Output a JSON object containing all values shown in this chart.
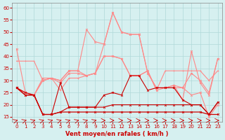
{
  "x": [
    0,
    1,
    2,
    3,
    4,
    5,
    6,
    7,
    8,
    9,
    10,
    11,
    12,
    13,
    14,
    15,
    16,
    17,
    18,
    19,
    20,
    21,
    22,
    23
  ],
  "line1": [
    43,
    25,
    24,
    31,
    31,
    29,
    33,
    33,
    32,
    33,
    40,
    40,
    39,
    32,
    32,
    34,
    26,
    27,
    27,
    27,
    33,
    30,
    25,
    39
  ],
  "line2": [
    38,
    38,
    38,
    30,
    31,
    26,
    31,
    31,
    32,
    33,
    40,
    40,
    39,
    32,
    32,
    34,
    26,
    34,
    34,
    34,
    34,
    34,
    30,
    34
  ],
  "line3": [
    27,
    25,
    24,
    16,
    16,
    29,
    19,
    19,
    19,
    19,
    24,
    25,
    24,
    32,
    32,
    26,
    27,
    27,
    27,
    22,
    20,
    20,
    16,
    21
  ],
  "line4": [
    27,
    24,
    24,
    16,
    16,
    17,
    17,
    17,
    17,
    17,
    17,
    17,
    17,
    17,
    17,
    17,
    17,
    17,
    17,
    17,
    17,
    17,
    16,
    16
  ],
  "line5": [
    27,
    24,
    24,
    16,
    16,
    17,
    19,
    19,
    19,
    19,
    19,
    20,
    20,
    20,
    20,
    20,
    20,
    20,
    20,
    20,
    20,
    20,
    16,
    21
  ],
  "line6_rafales": [
    27,
    25,
    24,
    30,
    31,
    30,
    34,
    34,
    51,
    46,
    45,
    58,
    50,
    49,
    49,
    33,
    27,
    27,
    28,
    27,
    24,
    25,
    15,
    20
  ],
  "line7_rafales_light": [
    27,
    25,
    24,
    30,
    31,
    30,
    34,
    34,
    32,
    33,
    45,
    58,
    50,
    49,
    49,
    33,
    27,
    27,
    28,
    22,
    42,
    29,
    24,
    39
  ],
  "arrows": [
    0,
    1,
    2,
    3,
    4,
    5,
    6,
    7,
    8,
    9,
    10,
    11,
    12,
    13,
    14,
    15,
    16,
    17,
    18,
    19,
    20,
    21,
    22,
    23
  ],
  "arrow_angles": [
    45,
    45,
    45,
    45,
    45,
    45,
    45,
    45,
    45,
    45,
    0,
    0,
    0,
    0,
    0,
    0,
    0,
    0,
    0,
    0,
    0,
    0,
    0,
    0
  ],
  "bg_color": "#d6f0f0",
  "grid_color": "#b0d8d8",
  "line_color_dark": "#cc0000",
  "line_color_light": "#ff8888",
  "xlabel": "Vent moyen/en rafales ( km/h )",
  "ylabel": "",
  "ylim": [
    13,
    62
  ],
  "yticks": [
    15,
    20,
    25,
    30,
    35,
    40,
    45,
    50,
    55,
    60
  ],
  "xticks": [
    0,
    1,
    2,
    3,
    4,
    5,
    6,
    7,
    8,
    9,
    10,
    11,
    12,
    13,
    14,
    15,
    16,
    17,
    18,
    19,
    20,
    21,
    22,
    23
  ]
}
